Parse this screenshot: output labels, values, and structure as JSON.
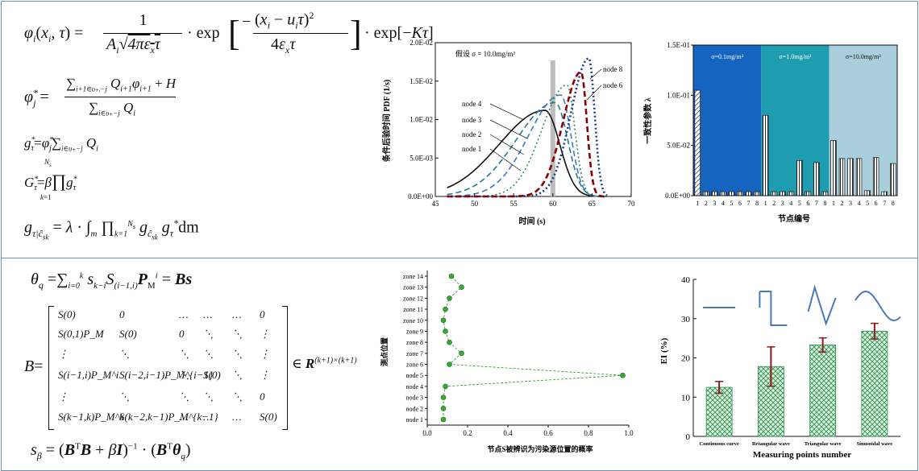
{
  "equations_top": {
    "eq1": "φᵢ(xᵢ, τ) = 1 / (Aᵢ√(4πε_xτ)) · exp[ −(xᵢ − uᵢτ)² / (4ε_xτ) ] · exp[−Kτ]",
    "eq2": "φⱼ* = ( Σ Q_{i+1}φ_{i+1} + H ) / Σ Qᵢ",
    "eq3": "g_τ* = φⱼ* Σ Qᵢ",
    "eq4": "G_τ* = β ∏_{k=1}^{N_s} g_τ*",
    "eq5": "g_τ|ĉ_sk = λ · ∫_m ∏_{k=1}^{N_s} g_ĉsk g_τ* dm"
  },
  "equations_bottom": {
    "eq1": "θ_q = Σ_{i=0}^{k} s_{k−i} S_{(i−1,i)} P_M^i = Bs",
    "eq2": "B = [...] ∈ R^{(k+1)×(k+1)}",
    "eq3": "s_β = (BᵀB + βI)⁻¹ · (Bᵀθ_q)"
  },
  "matrix_cells": [
    [
      "S(0)",
      "0",
      "…",
      "…",
      "…",
      "0"
    ],
    [
      "S(0,1)P_M",
      "S(0)",
      "0",
      "⋱",
      "⋱",
      "⋮"
    ],
    [
      "⋮",
      "⋱",
      "⋱",
      "⋱",
      "⋱",
      "⋮"
    ],
    [
      "S(i−1,i)P_M^i",
      "S(i−2,i−1)P_M^{i−1}",
      "⋱",
      "S(0)",
      "⋱",
      "⋮"
    ],
    [
      "⋮",
      "⋱",
      "⋱",
      "⋱",
      "⋱",
      "0"
    ],
    [
      "S(k−1,k)P_M^k",
      "S(k−2,k−1)P_M^{k−1}",
      "…",
      "…",
      "…",
      "S(0)"
    ]
  ],
  "chart_data": [
    {
      "type": "line",
      "title": "假设 σ = 10.0mg/m³",
      "xlabel": "时间 (s)",
      "ylabel": "条件后验时间 PDF (1/s)",
      "xlim": [
        45,
        70
      ],
      "ylim": [
        0,
        0.02
      ],
      "xticks": [
        "45",
        "50",
        "55",
        "60",
        "65",
        "70"
      ],
      "yticks": [
        "0.0E+00",
        "5.0E-03",
        "1.0E-02",
        "1.5E-02",
        "2.0E-02"
      ],
      "highlight_x": 60,
      "series": [
        {
          "name": "node 1",
          "color": "#111111",
          "style": "solid",
          "peak_x": 59.0,
          "peak_y": 0.0112
        },
        {
          "name": "node 2",
          "color": "#1f7a8c",
          "style": "dashed",
          "peak_x": 60.3,
          "peak_y": 0.0122
        },
        {
          "name": "node 3",
          "color": "#3c78c8",
          "style": "dashed",
          "peak_x": 61.0,
          "peak_y": 0.0132
        },
        {
          "name": "node 4",
          "color": "#2e8b57",
          "style": "dotted",
          "peak_x": 61.8,
          "peak_y": 0.0145
        },
        {
          "name": "node 6",
          "color": "#1a3a8c",
          "style": "dotted",
          "peak_x": 64.6,
          "peak_y": 0.018
        },
        {
          "name": "node 8",
          "color": "#8b0000",
          "style": "dashed",
          "peak_x": 63.6,
          "peak_y": 0.0162
        }
      ],
      "labels": [
        "node 4",
        "node 3",
        "node 2",
        "node 1",
        "node 8",
        "node 6"
      ]
    },
    {
      "type": "bar",
      "xlabel": "节点编号",
      "ylabel": "一致性参数 λ",
      "ylim": [
        0,
        0.15
      ],
      "yticks": [
        "0.0E+00",
        "5.0E-02",
        "1.0E-01",
        "1.5E-01"
      ],
      "categories": [
        "1",
        "2",
        "3",
        "4",
        "5",
        "6",
        "7",
        "8"
      ],
      "panels": [
        {
          "label": "σ=0.1mg/m³",
          "color": "#1565c0",
          "values": [
            0.105,
            0.004,
            0.004,
            0.004,
            0.004,
            0.004,
            0.004,
            0.004
          ]
        },
        {
          "label": "σ=1.0mg/m³",
          "color": "#1f9db0",
          "values": [
            0.08,
            0.004,
            0.004,
            0.004,
            0.035,
            0.004,
            0.033,
            0.004
          ]
        },
        {
          "label": "σ=10.0mg/m³",
          "color": "#a9cfdc",
          "values": [
            0.055,
            0.037,
            0.037,
            0.037,
            0.005,
            0.038,
            0.004,
            0.032
          ]
        }
      ]
    },
    {
      "type": "scatter",
      "xlabel": "节点S被辨识为污染源位置的概率",
      "ylabel": "测点位置",
      "xlim": [
        0,
        1.0
      ],
      "xticks": [
        "0.0",
        "0.2",
        "0.4",
        "0.6",
        "0.8",
        "1.0"
      ],
      "categories": [
        "node 1",
        "node 2",
        "node 3",
        "node 4",
        "node 5",
        "zone 6",
        "zone 7",
        "zone 8",
        "zone 9",
        "zone 10",
        "zone 11",
        "zone 12",
        "zone 13",
        "zone 14"
      ],
      "values": [
        0.08,
        0.08,
        0.08,
        0.09,
        0.97,
        0.11,
        0.17,
        0.11,
        0.09,
        0.08,
        0.09,
        0.11,
        0.17,
        0.12
      ]
    },
    {
      "type": "bar",
      "xlabel": "Measuring points number",
      "ylabel": "EI  (%)",
      "ylim": [
        0,
        40
      ],
      "yticks": [
        "0",
        "10",
        "20",
        "30",
        "40"
      ],
      "categories": [
        "Continuous curve",
        "Retangular wave",
        "Triangular wave",
        "Sinusoidal wave"
      ],
      "values": [
        12.5,
        17.8,
        23.3,
        26.8
      ],
      "errors": [
        1.5,
        5.0,
        1.8,
        2.0
      ]
    }
  ]
}
